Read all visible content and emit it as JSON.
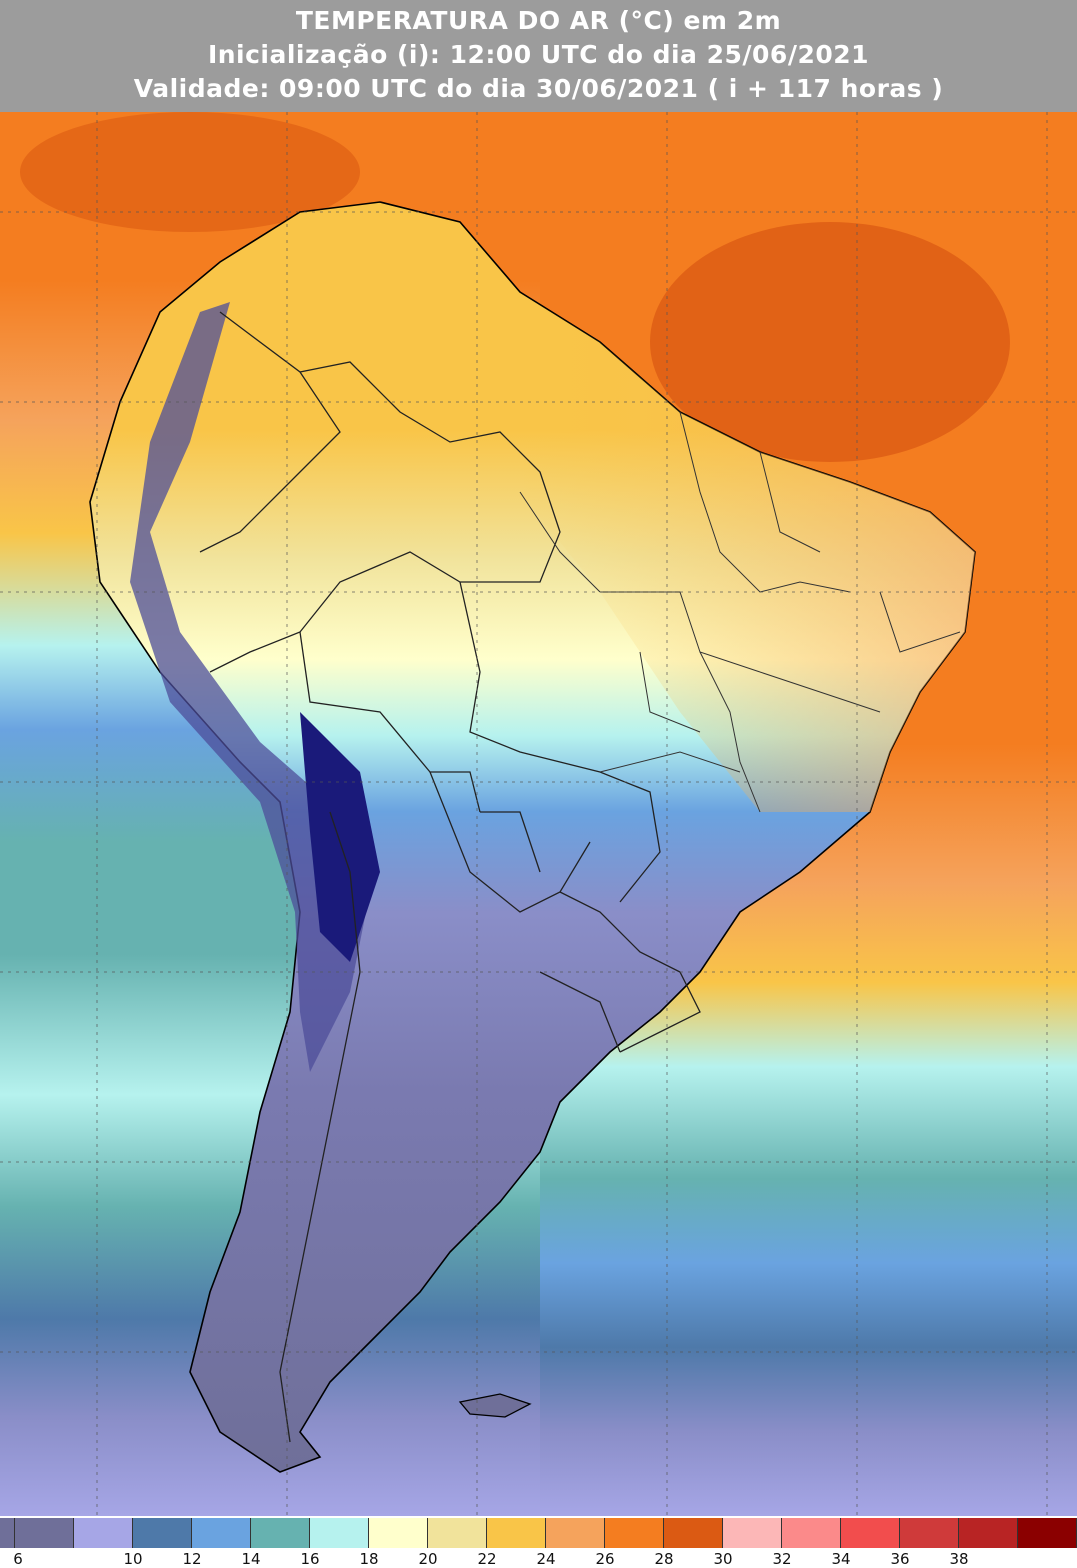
{
  "header": {
    "title": "TEMPERATURA DO AR (°C) em 2m",
    "init": "Inicialização (i): 12:00 UTC do dia 25/06/2021",
    "valid": "Validade: 09:00 UTC do dia 30/06/2021 ( i + 117 horas )"
  },
  "legend": {
    "labels": [
      "6",
      "10",
      "12",
      "14",
      "16",
      "18",
      "20",
      "22",
      "24",
      "26",
      "28",
      "30",
      "32",
      "34",
      "36",
      "38"
    ],
    "colors": [
      "#6f6f99",
      "#a6a6e6",
      "#4e79a9",
      "#6aa3e0",
      "#66b2b0",
      "#b6f2ee",
      "#ffffcc",
      "#f1e39b",
      "#f9c548",
      "#f5a35c",
      "#f47d20",
      "#db5a13",
      "#fcb7b7",
      "#fb8a8a",
      "#f24d4d",
      "#cf3a3a",
      "#b82424",
      "#8b0000"
    ]
  }
}
